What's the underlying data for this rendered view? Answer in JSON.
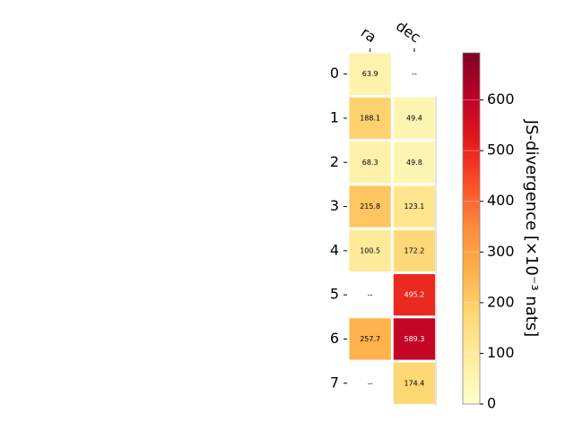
{
  "chart_data": {
    "type": "heatmap",
    "columns": [
      "ra",
      "dec"
    ],
    "rows": [
      "0",
      "1",
      "2",
      "3",
      "4",
      "5",
      "6",
      "7"
    ],
    "values": [
      [
        63.9,
        null
      ],
      [
        188.1,
        49.4
      ],
      [
        68.3,
        49.8
      ],
      [
        215.8,
        123.1
      ],
      [
        100.5,
        172.2
      ],
      [
        null,
        495.2
      ],
      [
        257.7,
        589.3
      ],
      [
        null,
        174.4
      ]
    ],
    "cell_labels": [
      [
        "63.9",
        "--"
      ],
      [
        "188.1",
        "49.4"
      ],
      [
        "68.3",
        "49.8"
      ],
      [
        "215.8",
        "123.1"
      ],
      [
        "100.5",
        "172.2"
      ],
      [
        "--",
        "495.2"
      ],
      [
        "257.7",
        "589.3"
      ],
      [
        "--",
        "174.4"
      ]
    ],
    "colorbar": {
      "label": "JS-divergence [×10⁻³ nats]",
      "vmin": 0,
      "vmax": 693,
      "ticks": [
        0,
        100,
        200,
        300,
        400,
        500,
        600
      ],
      "colormap": "YlOrRd"
    }
  }
}
